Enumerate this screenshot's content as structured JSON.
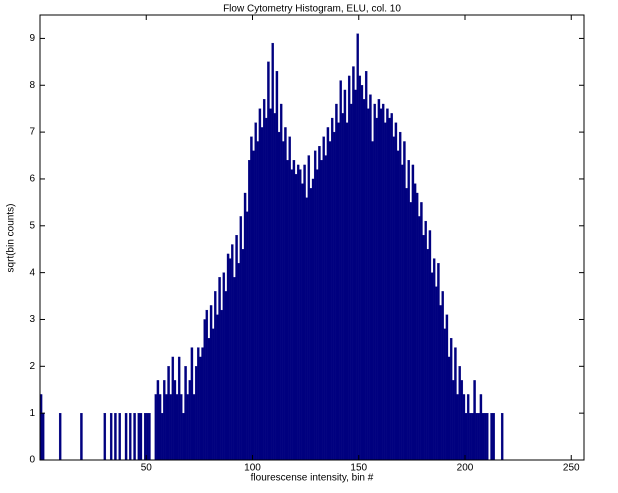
{
  "chart_data": {
    "type": "histogram",
    "title": "Flow Cytometry Histogram, ELU, col. 10",
    "x_label": "flourescense intensity, bin #",
    "y_label": "sqrt(bin counts)",
    "color": "#00007f",
    "xlim": [
      0,
      256
    ],
    "ylim": [
      0,
      9.5
    ],
    "xticks": [
      50,
      100,
      150,
      200,
      250
    ],
    "yticks": [
      0,
      1,
      2,
      3,
      4,
      5,
      6,
      7,
      8,
      9
    ],
    "bins": [
      0,
      1,
      2,
      3,
      4,
      5,
      6,
      7,
      8,
      9,
      10,
      11,
      12,
      13,
      14,
      15,
      16,
      17,
      18,
      19,
      20,
      21,
      22,
      23,
      24,
      25,
      26,
      27,
      28,
      29,
      30,
      31,
      32,
      33,
      34,
      35,
      36,
      37,
      38,
      39,
      40,
      41,
      42,
      43,
      44,
      45,
      46,
      47,
      48,
      49,
      50,
      51,
      52,
      53,
      54,
      55,
      56,
      57,
      58,
      59,
      60,
      61,
      62,
      63,
      64,
      65,
      66,
      67,
      68,
      69,
      70,
      71,
      72,
      73,
      74,
      75,
      76,
      77,
      78,
      79,
      80,
      81,
      82,
      83,
      84,
      85,
      86,
      87,
      88,
      89,
      90,
      91,
      92,
      93,
      94,
      95,
      96,
      97,
      98,
      99,
      100,
      101,
      102,
      103,
      104,
      105,
      106,
      107,
      108,
      109,
      110,
      111,
      112,
      113,
      114,
      115,
      116,
      117,
      118,
      119,
      120,
      121,
      122,
      123,
      124,
      125,
      126,
      127,
      128,
      129,
      130,
      131,
      132,
      133,
      134,
      135,
      136,
      137,
      138,
      139,
      140,
      141,
      142,
      143,
      144,
      145,
      146,
      147,
      148,
      149,
      150,
      151,
      152,
      153,
      154,
      155,
      156,
      157,
      158,
      159,
      160,
      161,
      162,
      163,
      164,
      165,
      166,
      167,
      168,
      169,
      170,
      171,
      172,
      173,
      174,
      175,
      176,
      177,
      178,
      179,
      180,
      181,
      182,
      183,
      184,
      185,
      186,
      187,
      188,
      189,
      190,
      191,
      192,
      193,
      194,
      195,
      196,
      197,
      198,
      199,
      200,
      201,
      202,
      203,
      204,
      205,
      206,
      207,
      208,
      209,
      210,
      211,
      212,
      213,
      214,
      215,
      216,
      217,
      218
    ],
    "values": [
      1.4,
      1,
      0,
      0,
      0,
      0,
      0,
      0,
      0,
      1,
      0,
      0,
      0,
      0,
      0,
      0,
      0,
      0,
      0,
      1,
      0,
      0,
      0,
      0,
      0,
      0,
      0,
      0,
      0,
      0,
      1,
      0,
      0,
      1,
      0,
      1,
      0,
      1,
      0,
      0,
      1,
      0,
      1,
      0,
      1,
      0,
      1,
      1,
      0,
      1,
      1,
      1,
      0,
      0,
      1.4,
      1.7,
      1.4,
      1,
      1.7,
      1.4,
      2,
      1.4,
      2.2,
      1.7,
      1.4,
      2.2,
      1.4,
      1,
      2,
      1.4,
      1.7,
      2.4,
      1.4,
      2,
      2.4,
      2.2,
      2.4,
      3,
      3.2,
      2.6,
      3.3,
      2.8,
      3.6,
      3.1,
      3.9,
      3.2,
      4,
      3.6,
      4.4,
      4.3,
      4.6,
      3.9,
      4.8,
      4.2,
      5.2,
      4.5,
      5.7,
      5.3,
      6.4,
      6.9,
      6.6,
      7.2,
      6.8,
      7.5,
      7.1,
      7.7,
      7.3,
      8.5,
      7.5,
      8.9,
      7.4,
      8.3,
      7,
      7.6,
      6.8,
      7.1,
      6.4,
      6.9,
      6.2,
      6.4,
      6.1,
      6.3,
      6.2,
      5.9,
      6.3,
      5.6,
      6.5,
      5.8,
      6,
      6.6,
      6.2,
      6.7,
      6.4,
      6.9,
      6.5,
      7.1,
      6.8,
      7.3,
      7,
      7.6,
      7.2,
      8.1,
      7.4,
      7.9,
      7.2,
      8.2,
      7.6,
      8.4,
      7.9,
      9.1,
      8.2,
      8,
      7.7,
      8.3,
      7.5,
      7.8,
      6.8,
      7.6,
      7.3,
      7.7,
      7.5,
      7.6,
      7.2,
      7.5,
      7.3,
      7.4,
      6.9,
      7.2,
      6.6,
      7,
      6.3,
      6.8,
      5.8,
      6.4,
      5.5,
      6.3,
      5.9,
      5.7,
      5.2,
      5.5,
      4.8,
      5.1,
      4.5,
      4.9,
      4,
      4.3,
      3.7,
      4.2,
      3.3,
      3.6,
      2.8,
      3.1,
      2.2,
      2.6,
      1.7,
      2.4,
      1.4,
      2,
      1.7,
      1.4,
      1,
      1.4,
      1,
      1,
      1.7,
      1,
      1,
      1.4,
      1,
      1,
      1,
      0,
      1,
      1,
      0,
      0,
      0,
      1
    ]
  }
}
